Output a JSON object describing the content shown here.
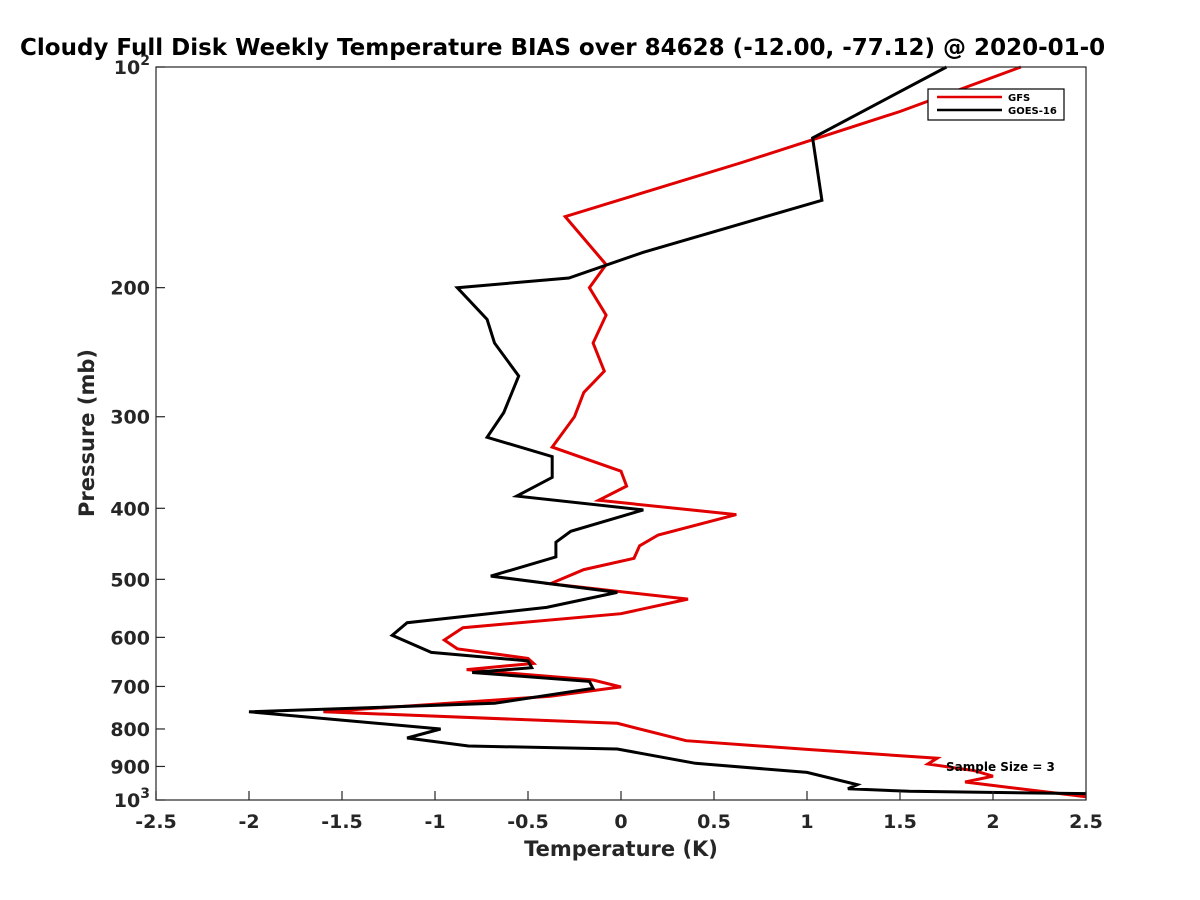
{
  "chart_data": {
    "type": "line",
    "title": "Cloudy Full Disk Weekly Temperature BIAS over 84628 (-12.00, -77.12) @ 2020-01-0",
    "xlabel": "Temperature (K)",
    "ylabel": "Pressure (mb)",
    "xlim": [
      -2.5,
      2.5
    ],
    "ylim": [
      100,
      1000
    ],
    "y_scale": "log",
    "y_reversed": true,
    "grid": false,
    "legend_position": "top-right",
    "x_ticks": [
      "-2.5",
      "-2",
      "-1.5",
      "-1",
      "-0.5",
      "0",
      "0.5",
      "1",
      "1.5",
      "2",
      "2.5"
    ],
    "x_tick_values": [
      -2.5,
      -2,
      -1.5,
      -1,
      -0.5,
      0,
      0.5,
      1,
      1.5,
      2,
      2.5
    ],
    "y_ticks": [
      {
        "value": 100,
        "base": "10",
        "exp": "2"
      },
      {
        "value": 200,
        "label": "200"
      },
      {
        "value": 300,
        "label": "300"
      },
      {
        "value": 400,
        "label": "400"
      },
      {
        "value": 500,
        "label": "500"
      },
      {
        "value": 600,
        "label": "600"
      },
      {
        "value": 700,
        "label": "700"
      },
      {
        "value": 800,
        "label": "800"
      },
      {
        "value": 900,
        "label": "900"
      },
      {
        "value": 1000,
        "base": "10",
        "exp": "3"
      }
    ],
    "annotation": "Sample Size = 3",
    "series": [
      {
        "name": "GFS",
        "color": "#e00000",
        "points": [
          [
            2.15,
            100
          ],
          [
            1.5,
            115
          ],
          [
            0.65,
            135
          ],
          [
            -0.3,
            160
          ],
          [
            -0.08,
            186
          ],
          [
            -0.17,
            200
          ],
          [
            -0.08,
            218
          ],
          [
            -0.15,
            238
          ],
          [
            -0.09,
            260
          ],
          [
            -0.2,
            278
          ],
          [
            -0.25,
            300
          ],
          [
            -0.37,
            330
          ],
          [
            0,
            356
          ],
          [
            0.03,
            373
          ],
          [
            -0.12,
            390
          ],
          [
            0.62,
            408
          ],
          [
            0.2,
            435
          ],
          [
            0.1,
            450
          ],
          [
            0.07,
            468
          ],
          [
            -0.2,
            485
          ],
          [
            -0.38,
            507
          ],
          [
            0.36,
            532
          ],
          [
            0,
            557
          ],
          [
            -0.85,
            582
          ],
          [
            -0.95,
            605
          ],
          [
            -0.88,
            622
          ],
          [
            -0.5,
            641
          ],
          [
            -0.47,
            651
          ],
          [
            -0.83,
            664
          ],
          [
            -0.15,
            686
          ],
          [
            0,
            701
          ],
          [
            -0.38,
            722
          ],
          [
            -1.6,
            758
          ],
          [
            -0.02,
            786
          ],
          [
            0.35,
            830
          ],
          [
            1,
            853
          ],
          [
            1.7,
            877
          ],
          [
            1.65,
            893
          ],
          [
            1.9,
            912
          ],
          [
            2,
            928
          ],
          [
            1.85,
            945
          ],
          [
            2.1,
            962
          ],
          [
            2.5,
            990
          ]
        ]
      },
      {
        "name": "GOES-16",
        "color": "#000000",
        "points": [
          [
            1.75,
            100
          ],
          [
            1.03,
            125
          ],
          [
            1.08,
            152
          ],
          [
            0.12,
            179
          ],
          [
            -0.28,
            194
          ],
          [
            -0.88,
            200
          ],
          [
            -0.72,
            221
          ],
          [
            -0.68,
            238
          ],
          [
            -0.55,
            264
          ],
          [
            -0.63,
            296
          ],
          [
            -0.72,
            320
          ],
          [
            -0.37,
            340
          ],
          [
            -0.37,
            363
          ],
          [
            -0.56,
            385
          ],
          [
            0.12,
            402
          ],
          [
            -0.27,
            430
          ],
          [
            -0.35,
            445
          ],
          [
            -0.35,
            466
          ],
          [
            -0.7,
            495
          ],
          [
            -0.02,
            521
          ],
          [
            -0.4,
            546
          ],
          [
            -1.15,
            573
          ],
          [
            -1.23,
            596
          ],
          [
            -1.02,
            629
          ],
          [
            -0.5,
            646
          ],
          [
            -0.48,
            660
          ],
          [
            -0.8,
            670
          ],
          [
            -0.17,
            689
          ],
          [
            -0.15,
            704
          ],
          [
            -0.68,
            738
          ],
          [
            -2,
            758
          ],
          [
            -0.97,
            800
          ],
          [
            -1.15,
            823
          ],
          [
            -0.82,
            844
          ],
          [
            -0.02,
            852
          ],
          [
            0.4,
            891
          ],
          [
            1,
            917
          ],
          [
            1.27,
            953
          ],
          [
            1.22,
            965
          ],
          [
            1.55,
            973
          ],
          [
            2.5,
            980
          ]
        ]
      }
    ]
  }
}
